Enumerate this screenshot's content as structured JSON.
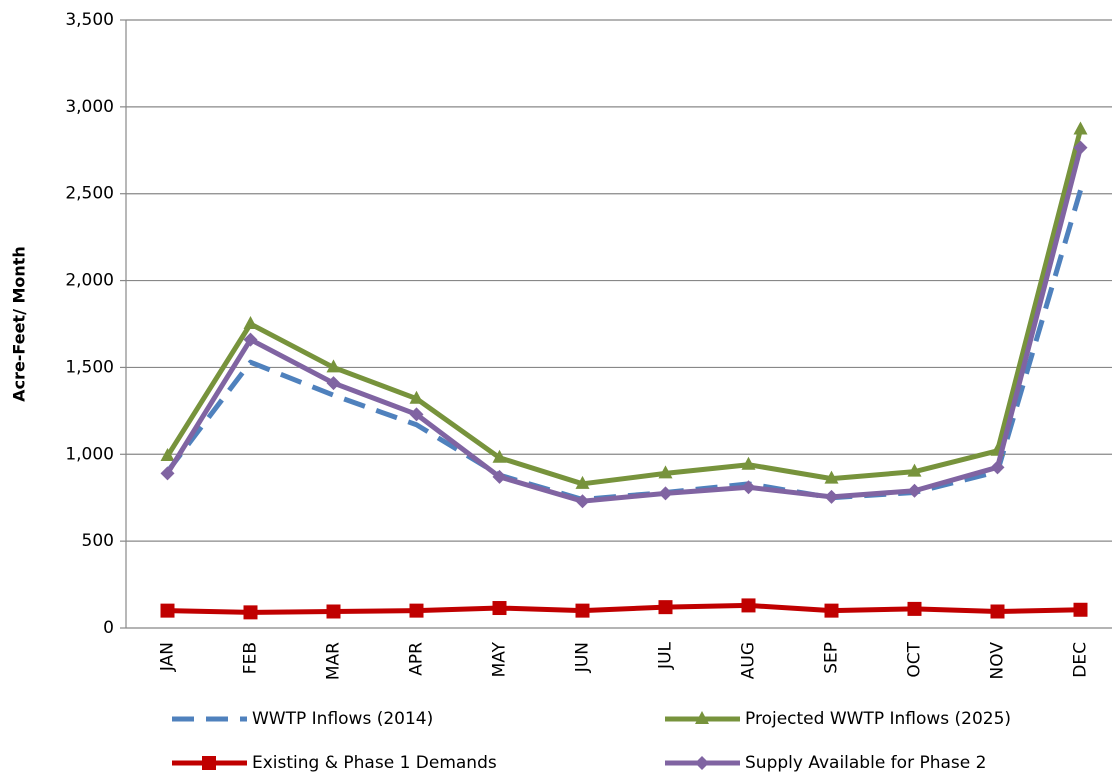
{
  "chart_data": {
    "type": "line",
    "ylabel": "Acre-Feet/ Month",
    "categories": [
      "JAN",
      "FEB",
      "MAR",
      "APR",
      "MAY",
      "JUN",
      "JUL",
      "AUG",
      "SEP",
      "OCT",
      "NOV",
      "DEC"
    ],
    "series": [
      {
        "name": "WWTP Inflows (2014)",
        "color": "#4f81bd",
        "line_style": "dashed",
        "marker": "none",
        "values": [
          900,
          1530,
          1340,
          1170,
          880,
          740,
          780,
          830,
          750,
          780,
          900,
          2520
        ]
      },
      {
        "name": "Projected WWTP Inflows (2025)",
        "color": "#77933c",
        "line_style": "solid",
        "marker": "triangle",
        "values": [
          990,
          1750,
          1500,
          1320,
          980,
          830,
          890,
          940,
          860,
          900,
          1020,
          2870
        ]
      },
      {
        "name": "Existing & Phase 1 Demands",
        "color": "#c00000",
        "line_style": "solid",
        "marker": "square",
        "values": [
          100,
          90,
          95,
          100,
          115,
          100,
          120,
          130,
          100,
          110,
          95,
          105
        ]
      },
      {
        "name": "Supply Available for Phase 2",
        "color": "#8064a2",
        "line_style": "solid",
        "marker": "diamond",
        "values": [
          890,
          1660,
          1410,
          1230,
          870,
          730,
          775,
          810,
          755,
          790,
          925,
          2765
        ]
      }
    ],
    "ylim": [
      0,
      3500
    ],
    "yticks": [
      0,
      500,
      {
        "value": 1000,
        "label": "1,000"
      },
      {
        "value": 1500,
        "label": "1,500"
      },
      {
        "value": 2000,
        "label": "2,000"
      },
      {
        "value": 2500,
        "label": "2,500"
      },
      {
        "value": 3000,
        "label": "3,000"
      },
      {
        "value": 3500,
        "label": "3,500"
      }
    ],
    "grid": true,
    "legend": "bottom"
  }
}
